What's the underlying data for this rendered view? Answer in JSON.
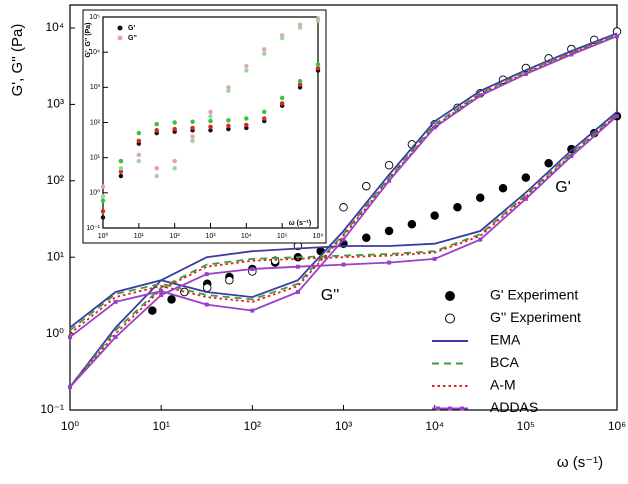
{
  "chart_data": [
    {
      "type": "line",
      "x_label": "ω (s⁻¹)",
      "y_label": "G', G'' (Pa)",
      "log_x": true,
      "log_y": true,
      "xlim": [
        1,
        1000000
      ],
      "ylim": [
        0.1,
        20000
      ],
      "xticks": [
        {
          "value": 1,
          "label": "10⁰"
        },
        {
          "value": 10,
          "label": "10¹"
        },
        {
          "value": 100,
          "label": "10²"
        },
        {
          "value": 1000,
          "label": "10³"
        },
        {
          "value": 10000,
          "label": "10⁴"
        },
        {
          "value": 100000,
          "label": "10⁵"
        },
        {
          "value": 1000000,
          "label": "10⁶"
        }
      ],
      "yticks": [
        {
          "value": 0.1,
          "label": "10⁻¹"
        },
        {
          "value": 1,
          "label": "10⁰"
        },
        {
          "value": 10,
          "label": "10¹"
        },
        {
          "value": 100,
          "label": "10²"
        },
        {
          "value": 1000,
          "label": "10³"
        },
        {
          "value": 10000,
          "label": "10⁴"
        }
      ],
      "annotations": [
        "G'",
        "G''"
      ],
      "x": [
        1,
        3.16,
        10,
        31.6,
        100,
        316,
        1000,
        3162,
        10000,
        31623,
        100000,
        316228,
        1000000
      ],
      "series": [
        {
          "name": "G'  Experiment",
          "color": "#000000",
          "marker": "filled",
          "x": [
            8,
            13,
            18,
            32,
            56,
            100,
            178,
            316,
            562,
            1000,
            1778,
            3162,
            5623,
            10000,
            17783,
            31623,
            56234,
            100000,
            177828,
            316228,
            562341,
            1000000
          ],
          "values": [
            2,
            2.8,
            3.5,
            4.5,
            5.5,
            7,
            8.5,
            10,
            12,
            15,
            18,
            22,
            27,
            35,
            45,
            60,
            80,
            110,
            170,
            260,
            420,
            700
          ]
        },
        {
          "name": "G'' Experiment",
          "color": "#000000",
          "marker": "open",
          "x": [
            8,
            13,
            18,
            32,
            56,
            100,
            178,
            316,
            562,
            1000,
            1778,
            3162,
            5623,
            10000,
            17783,
            31623,
            56234,
            100000,
            177828,
            316228,
            562341,
            1000000
          ],
          "values": [
            null,
            null,
            3.5,
            4,
            5,
            6.5,
            9,
            14,
            25,
            45,
            85,
            160,
            300,
            550,
            900,
            1400,
            2100,
            3000,
            4000,
            5300,
            7000,
            9000
          ]
        },
        {
          "name": "EMA",
          "color": "#3b3ba6",
          "dash": "solid",
          "values": [
            0.2,
            1.2,
            5,
            10,
            12,
            13,
            14,
            14,
            15,
            22,
            70,
            250,
            800
          ],
          "loss_values": [
            1.2,
            3.5,
            5,
            3.5,
            3,
            5,
            22,
            120,
            600,
            1500,
            2800,
            5000,
            8500
          ]
        },
        {
          "name": "BCA",
          "color": "#3aa03a",
          "dash": "dashed",
          "values": [
            0.2,
            1.1,
            4,
            8,
            9.5,
            10,
            10.5,
            11,
            12,
            20,
            65,
            230,
            750
          ],
          "loss_values": [
            1.1,
            3.3,
            4.5,
            3.2,
            2.8,
            4.5,
            20,
            110,
            550,
            1400,
            2700,
            4800,
            8200
          ]
        },
        {
          "name": "A-M",
          "color": "#e02020",
          "dash": "dotted",
          "values": [
            0.2,
            1.0,
            3.8,
            7.5,
            9,
            9.5,
            10,
            10.5,
            11.5,
            19,
            62,
            220,
            730
          ],
          "loss_values": [
            1.0,
            3.0,
            4.2,
            3.0,
            2.6,
            4.2,
            19,
            105,
            520,
            1350,
            2600,
            4700,
            8000
          ]
        },
        {
          "name": "ADDAS",
          "color": "#9a3fc9",
          "dash": "solid",
          "marker": "square",
          "values": [
            0.2,
            0.9,
            3.2,
            6,
            7,
            7.5,
            8,
            8.5,
            9.5,
            17,
            58,
            210,
            700
          ],
          "loss_values": [
            0.9,
            2.6,
            3.6,
            2.4,
            2.0,
            3.5,
            17,
            100,
            500,
            1300,
            2500,
            4500,
            7800
          ]
        }
      ]
    },
    {
      "type": "line",
      "x_label": "ω (s⁻¹)",
      "y_label": "G', G'' (Pa)",
      "log_x": true,
      "log_y": true,
      "xlim": [
        1,
        1000000
      ],
      "ylim": [
        0.1,
        100000
      ],
      "xticks": [
        {
          "value": 1,
          "label": "10⁰"
        },
        {
          "value": 10,
          "label": "10¹"
        },
        {
          "value": 100,
          "label": "10²"
        },
        {
          "value": 1000,
          "label": "10³"
        },
        {
          "value": 10000,
          "label": "10⁴"
        },
        {
          "value": 100000,
          "label": "10⁵"
        },
        {
          "value": 1000000,
          "label": "10⁶"
        }
      ],
      "yticks": [
        {
          "value": 0.1,
          "label": "10⁻¹"
        },
        {
          "value": 1,
          "label": "10⁰"
        },
        {
          "value": 10,
          "label": "10¹"
        },
        {
          "value": 100,
          "label": "10²"
        },
        {
          "value": 1000,
          "label": "10³"
        },
        {
          "value": 10000,
          "label": "10⁴"
        },
        {
          "value": 100000,
          "label": "10⁵"
        }
      ],
      "x": [
        1,
        3.16,
        10,
        31.6,
        100,
        316,
        1000,
        3162,
        10000,
        31623,
        100000,
        316228,
        1000000
      ],
      "series": [
        {
          "name": "G'",
          "color": "#111111",
          "marker": "filled",
          "values": [
            0.2,
            3,
            25,
            50,
            55,
            60,
            60,
            65,
            70,
            110,
            300,
            1000,
            3000
          ]
        },
        {
          "name": "G''",
          "color": "#e8a0b4",
          "marker": "filled",
          "values": [
            1.5,
            8,
            12,
            5,
            8,
            40,
            200,
            1000,
            4000,
            12000,
            30000,
            60000,
            90000
          ]
        },
        {
          "color": "#d02a2a",
          "marker": "filled",
          "values": [
            0.3,
            4,
            30,
            60,
            65,
            70,
            75,
            80,
            85,
            130,
            350,
            1200,
            3500
          ]
        },
        {
          "color": "#3cc03c",
          "marker": "filled",
          "values": [
            0.6,
            8,
            50,
            90,
            100,
            105,
            110,
            115,
            130,
            200,
            500,
            1500,
            4500
          ]
        },
        {
          "color": "#9bd89b",
          "marker": "filled",
          "values": [
            0.8,
            5,
            8,
            3,
            5,
            30,
            150,
            800,
            3000,
            9000,
            25000,
            50000,
            80000
          ]
        }
      ]
    }
  ]
}
